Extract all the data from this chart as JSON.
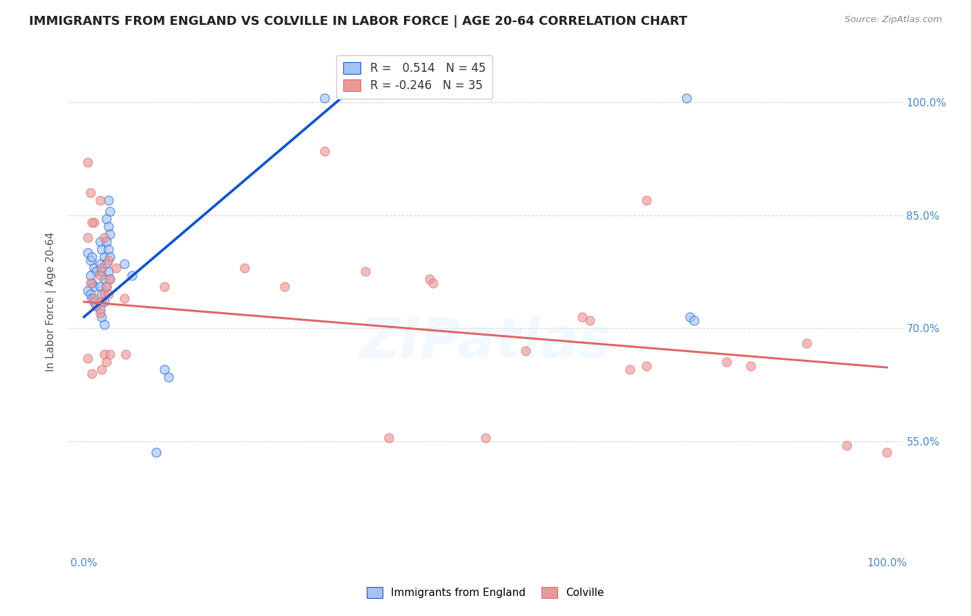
{
  "title": "IMMIGRANTS FROM ENGLAND VS COLVILLE IN LABOR FORCE | AGE 20-64 CORRELATION CHART",
  "source": "Source: ZipAtlas.com",
  "ylabel": "In Labor Force | Age 20-64",
  "xlim": [
    -0.02,
    1.02
  ],
  "ylim": [
    0.4,
    1.07
  ],
  "xticks": [
    0.0,
    0.2,
    0.4,
    0.6,
    0.8,
    1.0
  ],
  "xticklabels": [
    "0.0%",
    "",
    "",
    "",
    "",
    "100.0%"
  ],
  "ytick_positions": [
    0.55,
    0.7,
    0.85,
    1.0
  ],
  "ytick_labels": [
    "55.0%",
    "70.0%",
    "85.0%",
    "100.0%"
  ],
  "watermark": "ZIPatlas",
  "blue_color": "#a4c2f4",
  "pink_color": "#ea9999",
  "blue_line_color": "#1155cc",
  "pink_line_color": "#e06666",
  "england_scatter": [
    [
      0.005,
      0.8
    ],
    [
      0.008,
      0.79
    ],
    [
      0.01,
      0.795
    ],
    [
      0.012,
      0.78
    ],
    [
      0.015,
      0.775
    ],
    [
      0.008,
      0.77
    ],
    [
      0.01,
      0.76
    ],
    [
      0.012,
      0.755
    ],
    [
      0.005,
      0.75
    ],
    [
      0.008,
      0.745
    ],
    [
      0.01,
      0.74
    ],
    [
      0.012,
      0.735
    ],
    [
      0.015,
      0.73
    ],
    [
      0.02,
      0.815
    ],
    [
      0.022,
      0.805
    ],
    [
      0.025,
      0.795
    ],
    [
      0.02,
      0.785
    ],
    [
      0.022,
      0.775
    ],
    [
      0.025,
      0.765
    ],
    [
      0.02,
      0.755
    ],
    [
      0.022,
      0.745
    ],
    [
      0.025,
      0.735
    ],
    [
      0.02,
      0.725
    ],
    [
      0.022,
      0.715
    ],
    [
      0.025,
      0.705
    ],
    [
      0.03,
      0.87
    ],
    [
      0.032,
      0.855
    ],
    [
      0.028,
      0.845
    ],
    [
      0.03,
      0.835
    ],
    [
      0.032,
      0.825
    ],
    [
      0.028,
      0.815
    ],
    [
      0.03,
      0.805
    ],
    [
      0.032,
      0.795
    ],
    [
      0.028,
      0.785
    ],
    [
      0.03,
      0.775
    ],
    [
      0.032,
      0.765
    ],
    [
      0.028,
      0.755
    ],
    [
      0.05,
      0.785
    ],
    [
      0.06,
      0.77
    ],
    [
      0.09,
      0.535
    ],
    [
      0.1,
      0.645
    ],
    [
      0.105,
      0.635
    ],
    [
      0.3,
      1.005
    ],
    [
      0.75,
      1.005
    ],
    [
      0.755,
      0.715
    ],
    [
      0.76,
      0.71
    ]
  ],
  "colville_scatter": [
    [
      0.005,
      0.92
    ],
    [
      0.008,
      0.88
    ],
    [
      0.012,
      0.84
    ],
    [
      0.005,
      0.82
    ],
    [
      0.01,
      0.84
    ],
    [
      0.008,
      0.76
    ],
    [
      0.012,
      0.74
    ],
    [
      0.015,
      0.73
    ],
    [
      0.005,
      0.66
    ],
    [
      0.01,
      0.64
    ],
    [
      0.02,
      0.87
    ],
    [
      0.025,
      0.82
    ],
    [
      0.022,
      0.78
    ],
    [
      0.02,
      0.77
    ],
    [
      0.025,
      0.745
    ],
    [
      0.022,
      0.735
    ],
    [
      0.02,
      0.72
    ],
    [
      0.025,
      0.665
    ],
    [
      0.022,
      0.645
    ],
    [
      0.03,
      0.79
    ],
    [
      0.032,
      0.765
    ],
    [
      0.028,
      0.755
    ],
    [
      0.03,
      0.745
    ],
    [
      0.032,
      0.665
    ],
    [
      0.028,
      0.655
    ],
    [
      0.04,
      0.78
    ],
    [
      0.05,
      0.74
    ],
    [
      0.052,
      0.665
    ],
    [
      0.1,
      0.755
    ],
    [
      0.2,
      0.78
    ],
    [
      0.25,
      0.755
    ],
    [
      0.3,
      0.935
    ],
    [
      0.35,
      0.775
    ],
    [
      0.38,
      0.555
    ],
    [
      0.43,
      0.765
    ],
    [
      0.435,
      0.76
    ],
    [
      0.5,
      0.555
    ],
    [
      0.55,
      0.67
    ],
    [
      0.62,
      0.715
    ],
    [
      0.63,
      0.71
    ],
    [
      0.68,
      0.645
    ],
    [
      0.7,
      0.65
    ],
    [
      0.7,
      0.87
    ],
    [
      0.8,
      0.655
    ],
    [
      0.83,
      0.65
    ],
    [
      0.9,
      0.68
    ],
    [
      0.95,
      0.545
    ],
    [
      1.0,
      0.535
    ]
  ],
  "england_line_x": [
    0.0,
    0.32
  ],
  "england_line_y": [
    0.715,
    1.005
  ],
  "colville_line_x": [
    0.0,
    1.0
  ],
  "colville_line_y": [
    0.735,
    0.648
  ],
  "background_color": "#ffffff",
  "grid_color": "#cccccc",
  "title_fontsize": 13,
  "label_fontsize": 11,
  "tick_fontsize": 11,
  "scatter_size": 90,
  "scatter_alpha": 0.65,
  "line_width": 2.2
}
